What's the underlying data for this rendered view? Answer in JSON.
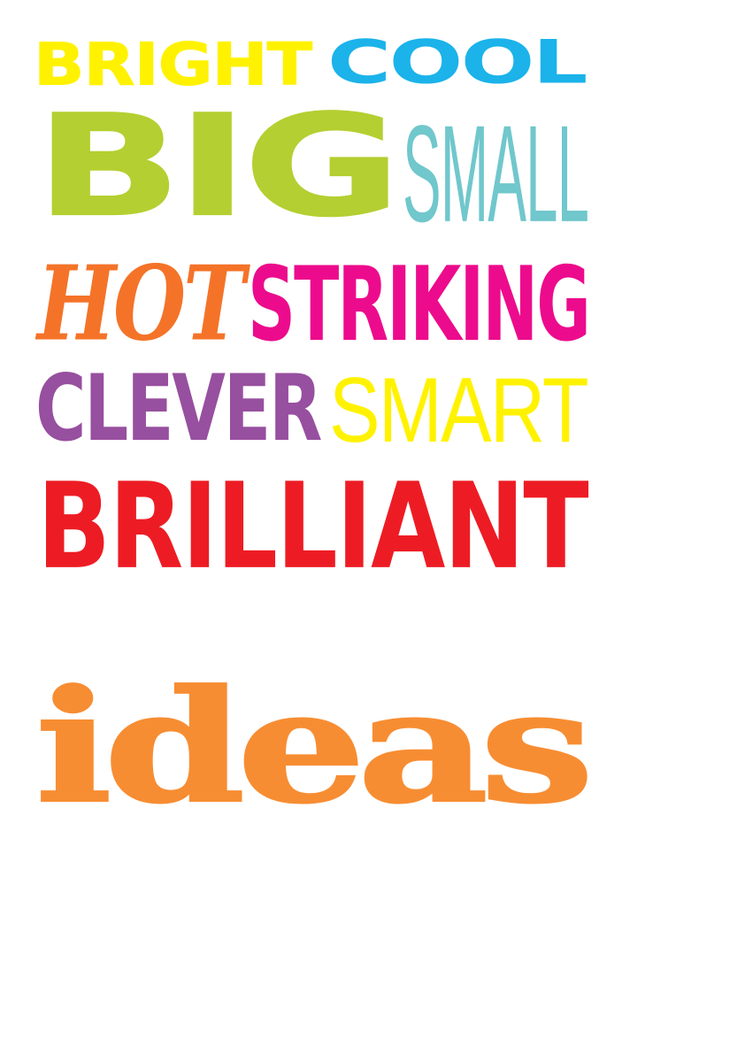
{
  "poster": {
    "row1": {
      "left": "BRIGHT",
      "right": "COOL"
    },
    "row2": {
      "left": "BIG",
      "right": "SMALL"
    },
    "row3": {
      "left": "HOT",
      "right": "STRIKING"
    },
    "row4": {
      "left": "CLEVER",
      "right": "SMART"
    },
    "row5": {
      "word": "BRILLIANT"
    },
    "bottom": {
      "word": "ideas"
    }
  },
  "colors": {
    "background": "#ffffff",
    "bright": "#fff200",
    "cool": "#1bb3ea",
    "big": "#b4cf31",
    "small": "#70c7cc",
    "hot": "#f47328",
    "striking": "#ec0b8c",
    "clever": "#974f9f",
    "smart": "#fff200",
    "brilliant": "#ed1c24",
    "ideas": "#f78d32"
  }
}
